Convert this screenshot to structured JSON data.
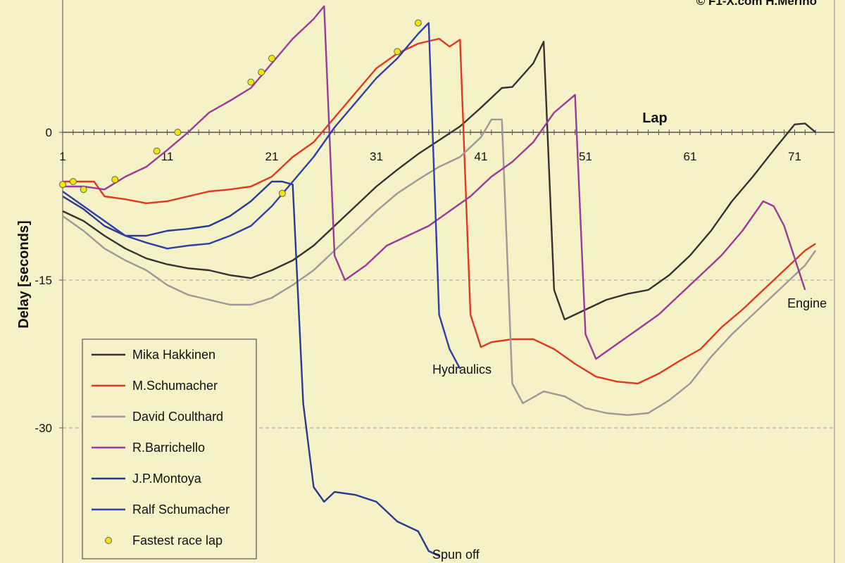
{
  "chart_data": {
    "type": "line",
    "title": "",
    "credit": "© F1-X.com H.Merino",
    "xlabel": "Lap",
    "ylabel": "Delay [seconds]",
    "xlim": [
      1,
      73
    ],
    "ylim": [
      -43,
      13
    ],
    "x_ticks": [
      1,
      11,
      21,
      31,
      41,
      51,
      61,
      71
    ],
    "y_ticks": [
      0,
      -15,
      -30
    ],
    "y_gridlines": [
      -15,
      -30
    ],
    "legend_position": "bottom-left",
    "series": [
      {
        "name": "Mika Hakkinen",
        "color": "#333333",
        "points": [
          [
            1,
            -8.0
          ],
          [
            3,
            -9.0
          ],
          [
            5,
            -10.5
          ],
          [
            7,
            -11.8
          ],
          [
            9,
            -12.8
          ],
          [
            11,
            -13.4
          ],
          [
            13,
            -13.8
          ],
          [
            15,
            -14.0
          ],
          [
            17,
            -14.5
          ],
          [
            19,
            -14.8
          ],
          [
            21,
            -14.0
          ],
          [
            23,
            -13.0
          ],
          [
            25,
            -11.5
          ],
          [
            27,
            -9.5
          ],
          [
            29,
            -7.5
          ],
          [
            31,
            -5.5
          ],
          [
            33,
            -3.8
          ],
          [
            35,
            -2.2
          ],
          [
            37,
            -0.8
          ],
          [
            39,
            0.6
          ],
          [
            41,
            2.5
          ],
          [
            43,
            4.5
          ],
          [
            44,
            4.6
          ],
          [
            46,
            7.0
          ],
          [
            47,
            9.2
          ],
          [
            48,
            -16.0
          ],
          [
            49,
            -19.0
          ],
          [
            51,
            -18.0
          ],
          [
            53,
            -17.0
          ],
          [
            55,
            -16.4
          ],
          [
            57,
            -16.0
          ],
          [
            59,
            -14.5
          ],
          [
            61,
            -12.5
          ],
          [
            63,
            -10.0
          ],
          [
            65,
            -7.0
          ],
          [
            67,
            -4.5
          ],
          [
            69,
            -1.8
          ],
          [
            71,
            0.8
          ],
          [
            72,
            0.9
          ],
          [
            73,
            0.0
          ]
        ]
      },
      {
        "name": "M.Schumacher",
        "color": "#e03a1e",
        "points": [
          [
            1,
            -5.0
          ],
          [
            2,
            -5.0
          ],
          [
            4,
            -5.0
          ],
          [
            5,
            -6.5
          ],
          [
            7,
            -6.8
          ],
          [
            9,
            -7.2
          ],
          [
            11,
            -7.0
          ],
          [
            13,
            -6.5
          ],
          [
            15,
            -6.0
          ],
          [
            17,
            -5.8
          ],
          [
            19,
            -5.5
          ],
          [
            21,
            -4.5
          ],
          [
            23,
            -2.5
          ],
          [
            25,
            -1.0
          ],
          [
            27,
            1.5
          ],
          [
            29,
            4.0
          ],
          [
            31,
            6.5
          ],
          [
            33,
            8.0
          ],
          [
            35,
            9.0
          ],
          [
            37,
            9.5
          ],
          [
            38,
            8.7
          ],
          [
            39,
            9.4
          ],
          [
            40,
            -18.5
          ],
          [
            41,
            -21.8
          ],
          [
            42,
            -21.3
          ],
          [
            44,
            -21.0
          ],
          [
            46,
            -21.0
          ],
          [
            48,
            -22.0
          ],
          [
            50,
            -23.5
          ],
          [
            52,
            -24.8
          ],
          [
            54,
            -25.3
          ],
          [
            56,
            -25.5
          ],
          [
            58,
            -24.5
          ],
          [
            60,
            -23.2
          ],
          [
            62,
            -22.0
          ],
          [
            64,
            -19.8
          ],
          [
            66,
            -18.0
          ],
          [
            68,
            -16.0
          ],
          [
            70,
            -14.0
          ],
          [
            72,
            -12.0
          ],
          [
            73,
            -11.3
          ]
        ]
      },
      {
        "name": "David Coulthard",
        "color": "#9a9a9a",
        "points": [
          [
            1,
            -8.5
          ],
          [
            3,
            -10.0
          ],
          [
            5,
            -11.8
          ],
          [
            7,
            -13.0
          ],
          [
            9,
            -14.0
          ],
          [
            11,
            -15.5
          ],
          [
            13,
            -16.5
          ],
          [
            15,
            -17.0
          ],
          [
            17,
            -17.5
          ],
          [
            19,
            -17.5
          ],
          [
            21,
            -16.8
          ],
          [
            23,
            -15.5
          ],
          [
            25,
            -14.0
          ],
          [
            27,
            -12.0
          ],
          [
            29,
            -10.0
          ],
          [
            31,
            -8.0
          ],
          [
            33,
            -6.2
          ],
          [
            35,
            -4.8
          ],
          [
            37,
            -3.5
          ],
          [
            39,
            -2.5
          ],
          [
            41,
            -0.5
          ],
          [
            42,
            1.3
          ],
          [
            43,
            1.3
          ],
          [
            44,
            -25.5
          ],
          [
            45,
            -27.5
          ],
          [
            47,
            -26.3
          ],
          [
            49,
            -26.8
          ],
          [
            51,
            -28.0
          ],
          [
            53,
            -28.5
          ],
          [
            55,
            -28.7
          ],
          [
            57,
            -28.5
          ],
          [
            59,
            -27.2
          ],
          [
            61,
            -25.5
          ],
          [
            63,
            -22.8
          ],
          [
            65,
            -20.5
          ],
          [
            67,
            -18.5
          ],
          [
            69,
            -16.5
          ],
          [
            71,
            -14.5
          ],
          [
            72,
            -13.5
          ],
          [
            73,
            -12.0
          ]
        ]
      },
      {
        "name": "R.Barrichello",
        "color": "#9b3a98",
        "points": [
          [
            1,
            -5.5
          ],
          [
            3,
            -5.5
          ],
          [
            5,
            -5.8
          ],
          [
            7,
            -4.5
          ],
          [
            9,
            -3.5
          ],
          [
            11,
            -1.8
          ],
          [
            13,
            0.0
          ],
          [
            15,
            2.0
          ],
          [
            17,
            3.2
          ],
          [
            19,
            4.5
          ],
          [
            21,
            7.0
          ],
          [
            23,
            9.5
          ],
          [
            25,
            11.5
          ],
          [
            26,
            12.8
          ],
          [
            27,
            -12.5
          ],
          [
            28,
            -15.0
          ],
          [
            30,
            -13.5
          ],
          [
            32,
            -11.5
          ],
          [
            34,
            -10.5
          ],
          [
            36,
            -9.5
          ],
          [
            38,
            -8.0
          ],
          [
            40,
            -6.5
          ],
          [
            42,
            -4.5
          ],
          [
            44,
            -3.0
          ],
          [
            46,
            -1.0
          ],
          [
            48,
            2.0
          ],
          [
            50,
            3.8
          ],
          [
            51,
            -20.5
          ],
          [
            52,
            -23.0
          ],
          [
            54,
            -21.5
          ],
          [
            56,
            -20.0
          ],
          [
            58,
            -18.5
          ],
          [
            60,
            -16.5
          ],
          [
            62,
            -14.5
          ],
          [
            64,
            -12.5
          ],
          [
            66,
            -10.0
          ],
          [
            68,
            -7.0
          ],
          [
            69,
            -7.5
          ],
          [
            70,
            -9.5
          ],
          [
            72,
            -16.0
          ]
        ]
      },
      {
        "name": "J.P.Montoya",
        "color": "#2a3a90",
        "points": [
          [
            1,
            -6.5
          ],
          [
            3,
            -7.8
          ],
          [
            5,
            -9.5
          ],
          [
            7,
            -10.5
          ],
          [
            9,
            -10.5
          ],
          [
            11,
            -10.0
          ],
          [
            13,
            -9.8
          ],
          [
            15,
            -9.5
          ],
          [
            17,
            -8.5
          ],
          [
            19,
            -7.0
          ],
          [
            21,
            -5.0
          ],
          [
            22,
            -5.0
          ],
          [
            23,
            -5.3
          ],
          [
            24,
            -27.5
          ],
          [
            25,
            -36.0
          ],
          [
            26,
            -37.5
          ],
          [
            27,
            -36.5
          ],
          [
            29,
            -36.8
          ],
          [
            31,
            -37.5
          ],
          [
            33,
            -39.5
          ],
          [
            35,
            -40.5
          ],
          [
            36,
            -42.5
          ],
          [
            37,
            -43.0
          ]
        ]
      },
      {
        "name": "Ralf Schumacher",
        "color": "#2f3ea8",
        "points": [
          [
            1,
            -6.0
          ],
          [
            3,
            -7.5
          ],
          [
            5,
            -9.0
          ],
          [
            7,
            -10.5
          ],
          [
            9,
            -11.2
          ],
          [
            11,
            -11.8
          ],
          [
            13,
            -11.5
          ],
          [
            15,
            -11.3
          ],
          [
            17,
            -10.5
          ],
          [
            19,
            -9.5
          ],
          [
            21,
            -7.5
          ],
          [
            23,
            -5.0
          ],
          [
            25,
            -2.5
          ],
          [
            27,
            0.5
          ],
          [
            29,
            3.0
          ],
          [
            31,
            5.5
          ],
          [
            33,
            7.5
          ],
          [
            35,
            10.0
          ],
          [
            36,
            11.1
          ],
          [
            37,
            -18.5
          ],
          [
            38,
            -22.0
          ],
          [
            39,
            -24.0
          ]
        ]
      }
    ],
    "fastest_laps": {
      "name": "Fastest race lap",
      "color": "#f2e600",
      "points": [
        [
          1,
          -5.3
        ],
        [
          2,
          -5.0
        ],
        [
          3,
          -5.8
        ],
        [
          6,
          -4.8
        ],
        [
          10,
          -1.9
        ],
        [
          12,
          0.0
        ],
        [
          19,
          5.1
        ],
        [
          20,
          6.1
        ],
        [
          21,
          7.5
        ],
        [
          22,
          -6.2
        ],
        [
          33,
          8.2
        ],
        [
          35,
          11.1
        ]
      ]
    },
    "annotations": [
      {
        "text": "Hydraulics",
        "lap": 36.5,
        "delay": -24.5
      },
      {
        "text": "Spun off",
        "lap": 36.5,
        "delay": -43.3
      },
      {
        "text": "Engine",
        "lap": 70.3,
        "delay": -17.8
      }
    ]
  }
}
